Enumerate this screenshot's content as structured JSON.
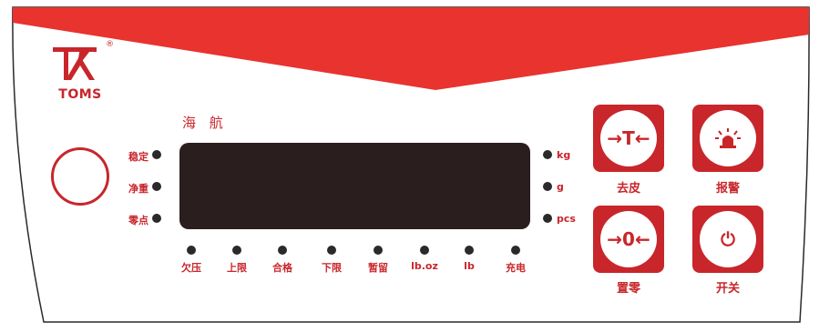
{
  "brand": {
    "name": "TOMS",
    "registered": "®",
    "subtitle": "海 航"
  },
  "left_indicators": [
    {
      "label": "稳定"
    },
    {
      "label": "净重"
    },
    {
      "label": "零点"
    }
  ],
  "right_indicators": [
    {
      "label": "kg"
    },
    {
      "label": "g"
    },
    {
      "label": "pcs"
    }
  ],
  "bottom_indicators": [
    {
      "label": "欠压"
    },
    {
      "label": "上限"
    },
    {
      "label": "合格"
    },
    {
      "label": "下限"
    },
    {
      "label": "暂留"
    },
    {
      "label": "lb.oz"
    },
    {
      "label": "lb"
    },
    {
      "label": "充电"
    }
  ],
  "keys": {
    "tare": {
      "glyph": "→T←",
      "label": "去皮"
    },
    "alarm": {
      "label": "报警"
    },
    "zero": {
      "glyph": "→0←",
      "label": "置零"
    },
    "power": {
      "glyph": "⏻",
      "label": "开关"
    }
  },
  "colors": {
    "accent": "#c8262b",
    "display": "#2b1e1f",
    "banner": "#e8332f"
  }
}
